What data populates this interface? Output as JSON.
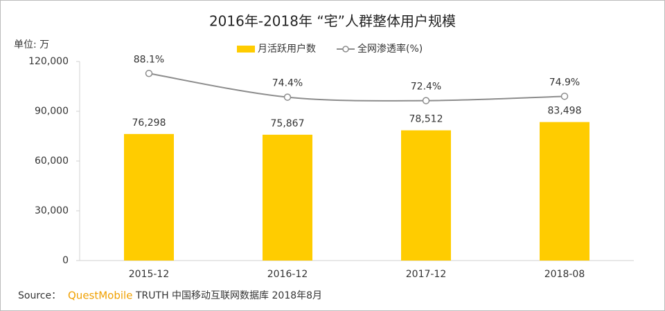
{
  "chart_data": {
    "type": "bar-line",
    "title": "2016年-2018年 “宅”人群整体用户规模",
    "y_label": "单位: 万",
    "categories": [
      "2015-12",
      "2016-12",
      "2017-12",
      "2018-08"
    ],
    "series": [
      {
        "name": "月活跃用户数",
        "type": "bar",
        "color": "#ffcc00",
        "values": [
          76298,
          75867,
          78512,
          83498
        ],
        "value_labels": [
          "76,298",
          "75,867",
          "78,512",
          "83,498"
        ]
      },
      {
        "name": "全网渗透率(%)",
        "type": "line",
        "axis": "y2",
        "color": "#8c8c8c",
        "values": [
          88.1,
          74.4,
          72.4,
          74.9
        ],
        "value_labels": [
          "88.1%",
          "74.4%",
          "72.4%",
          "74.9%"
        ]
      }
    ],
    "ylim": [
      0,
      120000
    ],
    "yticks": [
      0,
      {
        "value": 30000,
        "label": "30,000"
      },
      {
        "value": 60000,
        "label": "60,000"
      },
      {
        "value": 90000,
        "label": "90,000"
      },
      {
        "value": 120000,
        "label": "120,000"
      }
    ],
    "y2lim": [
      -20,
      95
    ],
    "legend": "top",
    "source": {
      "prefix": "Source：",
      "brand": "QuestMobile",
      "text": "TRUTH 中国移动互联网数据库 2018年8月"
    }
  }
}
